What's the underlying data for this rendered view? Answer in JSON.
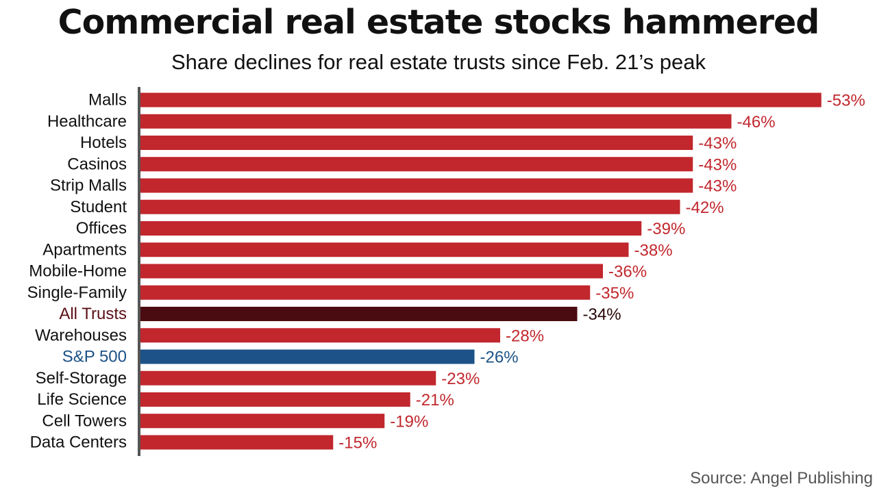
{
  "header": {
    "title": "Commercial real estate stocks hammered",
    "subtitle": "Share declines for real estate trusts since Feb. 21’s peak"
  },
  "footer": {
    "source": "Source: Angel Publishing"
  },
  "colors": {
    "default_bar": "#c1272d",
    "default_label": "#c1272d",
    "category_label": "#111111",
    "axis": "#555555"
  },
  "chart_data": {
    "type": "bar",
    "orientation": "horizontal",
    "title": "Commercial real estate stocks hammered",
    "subtitle": "Share declines for real estate trusts since Feb. 21’s peak",
    "xlabel": "",
    "ylabel": "",
    "unit": "%",
    "xlim": [
      0,
      -55
    ],
    "grid": false,
    "legend": "none",
    "categories": [
      "Malls",
      "Healthcare",
      "Hotels",
      "Casinos",
      "Strip Malls",
      "Student",
      "Offices",
      "Apartments",
      "Mobile-Home",
      "Single-Family",
      "All Trusts",
      "Warehouses",
      "S&P 500",
      "Self-Storage",
      "Life Science",
      "Cell Towers",
      "Data Centers"
    ],
    "values": [
      -53,
      -46,
      -43,
      -43,
      -43,
      -42,
      -39,
      -38,
      -36,
      -35,
      -34,
      -28,
      -26,
      -23,
      -21,
      -19,
      -15
    ],
    "value_labels": [
      "-53%",
      "-46%",
      "-43%",
      "-43%",
      "-43%",
      "-42%",
      "-39%",
      "-38%",
      "-36%",
      "-35%",
      "-34%",
      "-28%",
      "-26%",
      "-23%",
      "-21%",
      "-19%",
      "-15%"
    ],
    "highlights": {
      "All Trusts": {
        "bar": "#4a0c10",
        "label": "#5a1014",
        "value_label": "#2a0608"
      },
      "S&P 500": {
        "bar": "#1c5287",
        "label": "#1c5287",
        "value_label": "#1c5287"
      }
    }
  }
}
